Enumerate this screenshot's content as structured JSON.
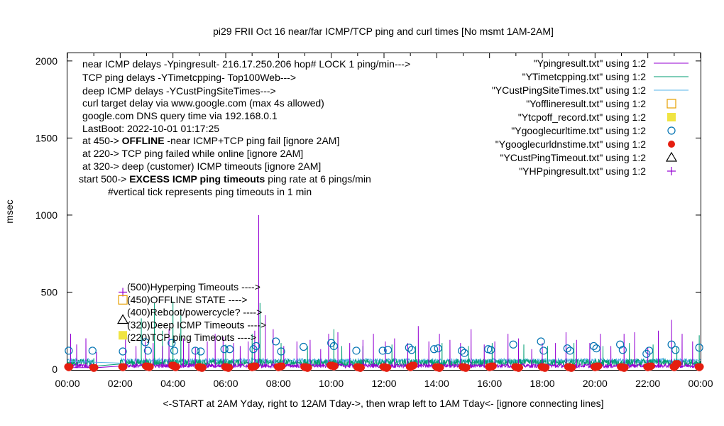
{
  "chart_data": {
    "type": "line",
    "title": "pi29 FRII Oct 16  near/far ICMP/TCP ping and curl times [No msmt 1AM-2AM]",
    "xlabel": "<-START at 2AM Yday, right to 12AM Tday->, then wrap left to 1AM Tday<- [ignore connecting lines]",
    "ylabel": "msec",
    "xlim": [
      0,
      24
    ],
    "ylim": [
      0,
      2050
    ],
    "xticks": [
      "00:00",
      "02:00",
      "04:00",
      "06:00",
      "08:00",
      "10:00",
      "12:00",
      "14:00",
      "16:00",
      "18:00",
      "20:00",
      "22:00",
      "00:00"
    ],
    "yticks": [
      "0",
      "500",
      "1000",
      "1500",
      "2000"
    ],
    "legend_position": "top-right",
    "legend": [
      {
        "label": "\"Ypingresult.txt\" using 1:2",
        "color": "#9400d3",
        "marker": "line"
      },
      {
        "label": "\"YTimetcpping.txt\" using 1:2",
        "color": "#009e73",
        "marker": "line"
      },
      {
        "label": "\"YCustPingSiteTimes.txt\" using 1:2",
        "color": "#56b4e9",
        "marker": "line"
      },
      {
        "label": "\"Yofflineresult.txt\" using 1:2",
        "color": "#e69f00",
        "marker": "open-square"
      },
      {
        "label": "\"Ytcpoff_record.txt\" using 1:2",
        "color": "#f0e442",
        "marker": "filled-square"
      },
      {
        "label": "\"Ygooglecurltime.txt\" using 1:2",
        "color": "#0072b2",
        "marker": "open-circle"
      },
      {
        "label": "\"Ygooglecurldnstime.txt\" using 1:2",
        "color": "#e51e10",
        "marker": "filled-circle"
      },
      {
        "label": "\"YCustPingTimeout.txt\" using 1:2",
        "color": "#000000",
        "marker": "open-triangle"
      },
      {
        "label": "\"YHPpingresult.txt\" using 1:2",
        "color": "#9400d3",
        "marker": "plus"
      }
    ],
    "info_lines": [
      {
        "text": "near ICMP delays -Ypingresult- 216.17.250.206 hop# LOCK 1 ping/min--->"
      },
      {
        "text": "TCP ping delays -YTimetcpping- Top100Web--->"
      },
      {
        "text": "deep ICMP delays -YCustPingSiteTimes--->"
      },
      {
        "text": "curl target delay via www.google.com (max 4s allowed)"
      },
      {
        "text": "google.com DNS query time via 192.168.0.1"
      },
      {
        "text": "LastBoot: 2022-10-01 01:17:25"
      },
      {
        "pre": "at 450-> ",
        "bold": "OFFLINE",
        "post": " -near ICMP+TCP ping fail [ignore 2AM]"
      },
      {
        "text": "at 220-> TCP ping failed while online [ignore 2AM]"
      },
      {
        "text": "at 320-> deep (customer) ICMP timeouts [ignore 2AM]"
      },
      {
        "pre": "start 500-> ",
        "bold": "EXCESS ICMP ping timeouts",
        "post": "  ping rate at 6 pings/min"
      },
      {
        "text": "#vertical tick represents ping timeouts in 1 min"
      }
    ],
    "level_annotations": [
      {
        "value": 500,
        "label": "(500)Hyperping Timeouts ---->"
      },
      {
        "value": 450,
        "label": "(450)OFFLINE STATE ---->"
      },
      {
        "value": 400,
        "label": "(400)Reboot/powercycle? ---->"
      },
      {
        "value": 320,
        "label": "(320)Deep ICMP Timeouts ---->"
      },
      {
        "value": 220,
        "label": "(220)TCP ping Timeouts ---->"
      }
    ],
    "series": [
      {
        "name": "\"Ypingresult.txt\" using 1:2",
        "note": "near ICMP ping delay, 1 per min; typical 15-40 ms",
        "spikes": [
          [
            0.12,
            230
          ],
          [
            0.35,
            160
          ],
          [
            0.7,
            200
          ],
          [
            1.1,
            110
          ],
          [
            2.2,
            240
          ],
          [
            2.6,
            150
          ],
          [
            2.95,
            180
          ],
          [
            3.25,
            170
          ],
          [
            3.6,
            150
          ],
          [
            3.85,
            260
          ],
          [
            4.4,
            200
          ],
          [
            4.6,
            170
          ],
          [
            4.85,
            140
          ],
          [
            5.3,
            180
          ],
          [
            5.6,
            230
          ],
          [
            5.9,
            210
          ],
          [
            6.3,
            170
          ],
          [
            6.55,
            150
          ],
          [
            6.85,
            180
          ],
          [
            7.1,
            250
          ],
          [
            7.25,
            1000
          ],
          [
            7.5,
            350
          ],
          [
            7.8,
            260
          ],
          [
            8.2,
            150
          ],
          [
            8.7,
            180
          ],
          [
            9.2,
            190
          ],
          [
            9.6,
            130
          ],
          [
            9.9,
            230
          ],
          [
            10.25,
            240
          ],
          [
            10.7,
            170
          ],
          [
            11.2,
            190
          ],
          [
            11.6,
            230
          ],
          [
            12.05,
            180
          ],
          [
            12.4,
            200
          ],
          [
            12.9,
            170
          ],
          [
            13.3,
            280
          ],
          [
            13.7,
            180
          ],
          [
            14.1,
            230
          ],
          [
            14.5,
            190
          ],
          [
            14.9,
            170
          ],
          [
            15.3,
            260
          ],
          [
            15.8,
            160
          ],
          [
            16.2,
            180
          ],
          [
            16.7,
            230
          ],
          [
            17.1,
            200
          ],
          [
            17.6,
            130
          ],
          [
            18.0,
            170
          ],
          [
            18.5,
            170
          ],
          [
            18.9,
            240
          ],
          [
            19.3,
            190
          ],
          [
            19.8,
            170
          ],
          [
            20.2,
            230
          ],
          [
            20.6,
            150
          ],
          [
            21.1,
            230
          ],
          [
            21.5,
            240
          ],
          [
            22.0,
            140
          ],
          [
            22.4,
            250
          ],
          [
            22.9,
            320
          ],
          [
            23.3,
            230
          ],
          [
            23.7,
            180
          ]
        ]
      },
      {
        "name": "\"YTimetcpping.txt\" using 1:2",
        "note": "TCP ping delay to Top100Web; typical 20-80 ms",
        "spikes": [
          [
            1.0,
            70
          ],
          [
            2.8,
            330
          ],
          [
            3.3,
            430
          ],
          [
            3.6,
            250
          ],
          [
            4.0,
            440
          ],
          [
            4.3,
            380
          ],
          [
            5.0,
            130
          ],
          [
            6.0,
            160
          ],
          [
            7.0,
            230
          ],
          [
            7.3,
            430
          ],
          [
            8.1,
            170
          ],
          [
            9.1,
            150
          ],
          [
            10.1,
            260
          ],
          [
            10.4,
            150
          ],
          [
            11.2,
            150
          ],
          [
            12.3,
            160
          ],
          [
            13.2,
            150
          ],
          [
            14.2,
            170
          ],
          [
            15.2,
            150
          ],
          [
            16.1,
            170
          ],
          [
            17.3,
            160
          ],
          [
            18.2,
            150
          ],
          [
            19.2,
            170
          ],
          [
            20.3,
            150
          ],
          [
            21.3,
            170
          ],
          [
            22.2,
            160
          ],
          [
            23.1,
            150
          ],
          [
            23.95,
            220
          ]
        ]
      },
      {
        "name": "\"YCustPingSiteTimes.txt\" using 1:2",
        "note": "deep ICMP delay; typical 30-70 ms"
      },
      {
        "name": "\"Ygooglecurltime.txt\" using 1:2",
        "marker": "open-circle",
        "points": [
          [
            0.05,
            120
          ],
          [
            0.95,
            120
          ],
          [
            2.1,
            115
          ],
          [
            2.95,
            175
          ],
          [
            3.05,
            120
          ],
          [
            3.95,
            170
          ],
          [
            4.05,
            120
          ],
          [
            4.85,
            120
          ],
          [
            5.05,
            115
          ],
          [
            5.95,
            130
          ],
          [
            6.15,
            130
          ],
          [
            7.05,
            130
          ],
          [
            7.15,
            150
          ],
          [
            7.9,
            180
          ],
          [
            8.1,
            115
          ],
          [
            8.95,
            145
          ],
          [
            10.0,
            170
          ],
          [
            10.1,
            150
          ],
          [
            10.95,
            120
          ],
          [
            11.95,
            120
          ],
          [
            12.15,
            125
          ],
          [
            12.95,
            140
          ],
          [
            13.05,
            125
          ],
          [
            13.9,
            130
          ],
          [
            14.05,
            135
          ],
          [
            14.95,
            120
          ],
          [
            15.05,
            105
          ],
          [
            15.95,
            130
          ],
          [
            16.05,
            125
          ],
          [
            16.9,
            160
          ],
          [
            17.95,
            180
          ],
          [
            18.05,
            120
          ],
          [
            18.95,
            135
          ],
          [
            19.05,
            120
          ],
          [
            19.95,
            150
          ],
          [
            20.05,
            135
          ],
          [
            20.95,
            160
          ],
          [
            21.05,
            125
          ],
          [
            21.95,
            100
          ],
          [
            22.05,
            120
          ],
          [
            22.9,
            160
          ],
          [
            23.05,
            125
          ],
          [
            23.95,
            140
          ]
        ]
      },
      {
        "name": "\"Ygooglecurldnstime.txt\" using 1:2",
        "marker": "filled-circle",
        "note": "cluster of points near 5-30 ms at each hour",
        "points": [
          [
            0.05,
            10
          ],
          [
            1.0,
            5
          ],
          [
            2.1,
            10
          ],
          [
            3.0,
            15
          ],
          [
            3.1,
            10
          ],
          [
            4.0,
            20
          ],
          [
            4.1,
            10
          ],
          [
            5.0,
            10
          ],
          [
            5.1,
            5
          ],
          [
            6.0,
            10
          ],
          [
            6.1,
            5
          ],
          [
            7.0,
            10
          ],
          [
            7.1,
            15
          ],
          [
            8.0,
            10
          ],
          [
            8.1,
            15
          ],
          [
            9.0,
            10
          ],
          [
            9.1,
            5
          ],
          [
            10.0,
            20
          ],
          [
            10.1,
            15
          ],
          [
            11.0,
            10
          ],
          [
            11.1,
            5
          ],
          [
            12.0,
            10
          ],
          [
            12.1,
            5
          ],
          [
            13.0,
            10
          ],
          [
            13.1,
            20
          ],
          [
            14.0,
            10
          ],
          [
            14.1,
            5
          ],
          [
            15.0,
            10
          ],
          [
            15.1,
            5
          ],
          [
            16.0,
            10
          ],
          [
            16.1,
            15
          ],
          [
            17.0,
            10
          ],
          [
            17.1,
            5
          ],
          [
            18.0,
            10
          ],
          [
            18.1,
            5
          ],
          [
            19.0,
            10
          ],
          [
            19.1,
            5
          ],
          [
            20.0,
            10
          ],
          [
            20.1,
            15
          ],
          [
            21.0,
            10
          ],
          [
            21.1,
            5
          ],
          [
            22.0,
            10
          ],
          [
            22.1,
            15
          ],
          [
            23.0,
            10
          ],
          [
            23.1,
            30
          ],
          [
            23.95,
            10
          ]
        ]
      },
      {
        "name": "\"YHPpingresult.txt\" using 1:2",
        "marker": "plus",
        "note": "hyperping timeouts at level 500",
        "points": [
          [
            2.1,
            500
          ]
        ]
      },
      {
        "name": "\"Yofflineresult.txt\" using 1:2",
        "marker": "open-square",
        "note": "offline state at level 450",
        "points": [
          [
            2.1,
            450
          ]
        ]
      },
      {
        "name": "\"YCustPingTimeout.txt\" using 1:2",
        "marker": "open-triangle",
        "note": "deep ICMP timeouts at level 320",
        "points": [
          [
            2.1,
            320
          ]
        ]
      },
      {
        "name": "\"Ytcpoff_record.txt\" using 1:2",
        "marker": "filled-square",
        "note": "TCP ping timeouts at level 220",
        "points": [
          [
            2.1,
            220
          ]
        ]
      }
    ]
  }
}
